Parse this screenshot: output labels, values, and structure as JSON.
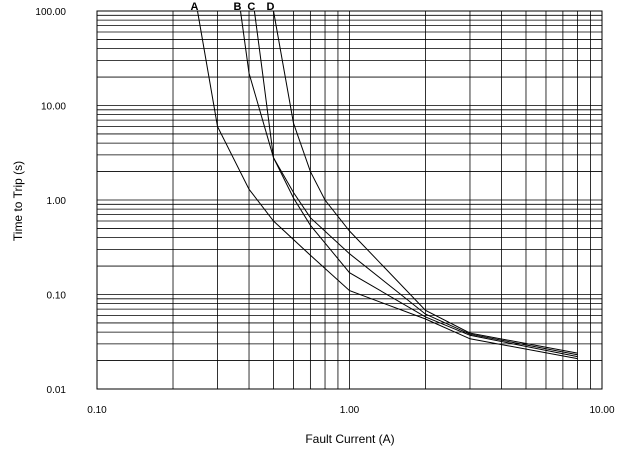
{
  "chart_data": {
    "type": "line",
    "title": "",
    "xlabel": "Fault Current (A)",
    "ylabel": "Time to Trip (s)",
    "x_scale": "log",
    "y_scale": "log",
    "xlim": [
      0.1,
      10
    ],
    "ylim": [
      0.01,
      100
    ],
    "grid": true,
    "x_ticks": [
      {
        "value": 0.1,
        "label": "0.10"
      },
      {
        "value": 1,
        "label": "1.00"
      },
      {
        "value": 10,
        "label": "10.00"
      }
    ],
    "y_ticks": [
      {
        "value": 100,
        "label": "100.00"
      },
      {
        "value": 10,
        "label": "10.00"
      },
      {
        "value": 1,
        "label": "1.00"
      },
      {
        "value": 0.1,
        "label": "0.10"
      },
      {
        "value": 0.01,
        "label": "0.01"
      }
    ],
    "series": [
      {
        "name": "A",
        "points": [
          [
            0.25,
            100
          ],
          [
            0.3,
            6
          ],
          [
            0.4,
            1.3
          ],
          [
            0.5,
            0.6
          ],
          [
            0.7,
            0.26
          ],
          [
            1,
            0.11
          ],
          [
            2,
            0.055
          ],
          [
            3,
            0.034
          ],
          [
            8,
            0.021
          ]
        ]
      },
      {
        "name": "B",
        "points": [
          [
            0.37,
            100
          ],
          [
            0.4,
            22
          ],
          [
            0.5,
            2.8
          ],
          [
            0.6,
            1.05
          ],
          [
            0.7,
            0.54
          ],
          [
            1,
            0.17
          ],
          [
            2,
            0.058
          ],
          [
            3,
            0.037
          ],
          [
            8,
            0.022
          ]
        ]
      },
      {
        "name": "C",
        "points": [
          [
            0.42,
            100
          ],
          [
            0.45,
            25
          ],
          [
            0.5,
            2.8
          ],
          [
            0.6,
            1.2
          ],
          [
            0.7,
            0.65
          ],
          [
            1,
            0.27
          ],
          [
            2,
            0.062
          ],
          [
            3,
            0.038
          ],
          [
            8,
            0.023
          ]
        ]
      },
      {
        "name": "D",
        "points": [
          [
            0.5,
            100
          ],
          [
            0.6,
            6.5
          ],
          [
            0.7,
            2.0
          ],
          [
            0.8,
            1.0
          ],
          [
            1,
            0.47
          ],
          [
            2,
            0.068
          ],
          [
            3,
            0.039
          ],
          [
            8,
            0.024
          ]
        ]
      }
    ]
  }
}
